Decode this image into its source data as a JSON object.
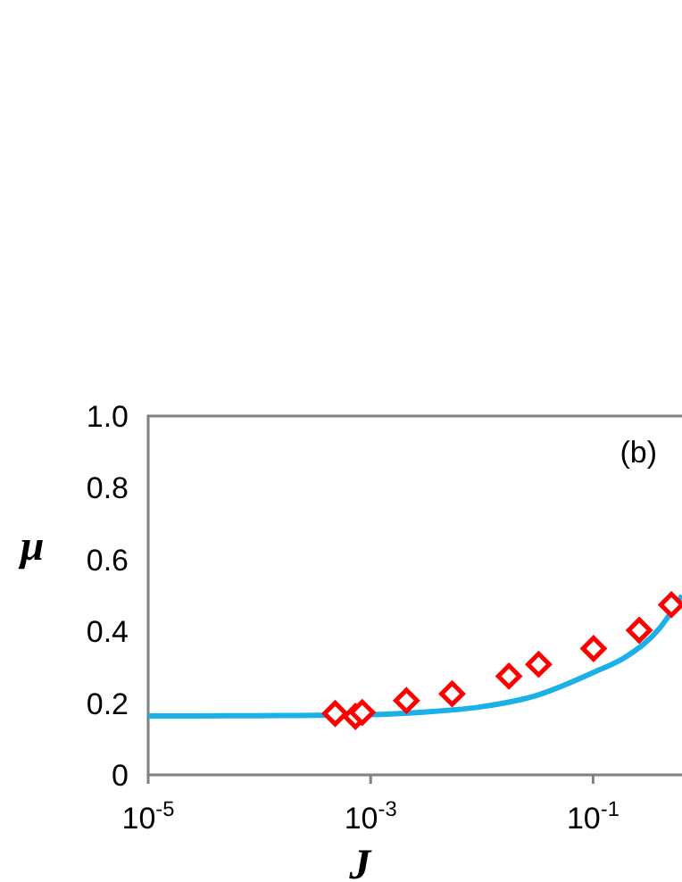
{
  "chart_data": {
    "type": "scatter",
    "xlabel": "J",
    "ylabel": "μ",
    "annotations": [
      "(b)"
    ],
    "log": "x",
    "xlim": [
      1e-05,
      0.63
    ],
    "ylim": [
      0,
      1
    ],
    "xticks": [
      {
        "value": 1e-05,
        "label": "10$^{-5}$"
      },
      {
        "value": 0.001,
        "label": "10$^{-3}$"
      },
      {
        "value": 0.1,
        "label": "10$^{-1}$"
      }
    ],
    "yticks": [
      0,
      0.2,
      0.4,
      0.6,
      0.8,
      {
        "value": 1,
        "label": "1.0"
      }
    ],
    "grid": false,
    "series": [
      {
        "type": "line",
        "color": "#1ab0e8",
        "marker": "none",
        "line_style": "solid",
        "x": [
          1e-05,
          0.0001,
          0.001,
          0.003,
          0.01,
          0.03,
          0.1,
          0.2,
          0.4,
          0.63
        ],
        "values": [
          0.164,
          0.165,
          0.168,
          0.175,
          0.19,
          0.22,
          0.285,
          0.33,
          0.41,
          0.5
        ]
      },
      {
        "color": "#ff0000",
        "marker": "diamond",
        "x": [
          0.00048,
          0.00073,
          0.00084,
          0.0021,
          0.0054,
          0.0175,
          0.0324,
          0.101,
          0.26,
          0.506
        ],
        "values": [
          0.171,
          0.163,
          0.174,
          0.207,
          0.226,
          0.275,
          0.308,
          0.352,
          0.403,
          0.474
        ]
      }
    ]
  }
}
